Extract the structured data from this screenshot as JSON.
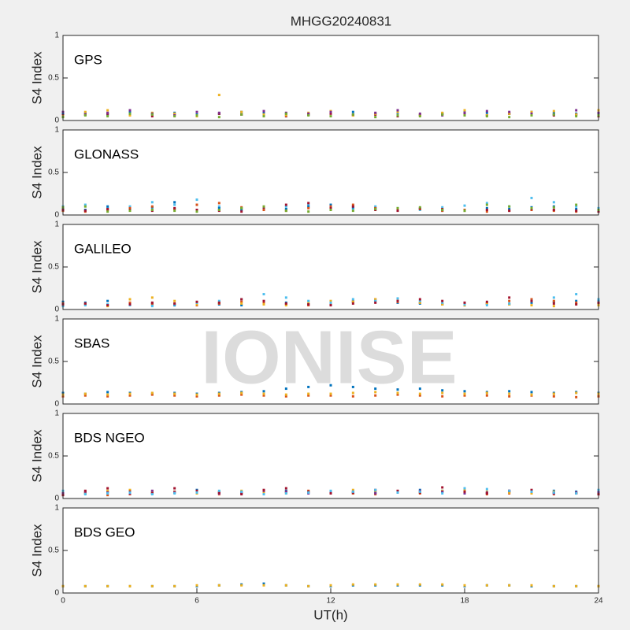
{
  "chart_data": [
    {
      "type": "scatter",
      "title": "MHGG20240831",
      "label": "GPS",
      "ylabel": "S4 Index",
      "xlim": [
        0,
        24
      ],
      "ylim": [
        0,
        1
      ],
      "yticks": [
        0,
        0.5,
        1
      ],
      "x": [
        0,
        1,
        2,
        3,
        4,
        5,
        6,
        7,
        8,
        9,
        10,
        11,
        12,
        13,
        14,
        15,
        16,
        17,
        18,
        19,
        20,
        21,
        22,
        23,
        24
      ],
      "series": [
        {
          "color": "#0072BD",
          "values": [
            0.08,
            0.09,
            0.07,
            0.1,
            0.08,
            0.09,
            0.07,
            0.08,
            0.1,
            0.09,
            0.08,
            0.07,
            0.09,
            0.1,
            0.08,
            0.09,
            0.07,
            0.08,
            0.1,
            0.09,
            0.08,
            0.1,
            0.09,
            0.08,
            0.07
          ]
        },
        {
          "color": "#A2142F",
          "values": [
            0.06,
            0.07,
            0.08,
            0.06,
            0.05,
            0.07,
            0.06,
            0.08,
            0.07,
            0.06,
            0.05,
            0.07,
            0.08,
            0.06,
            0.07,
            0.05,
            0.06,
            0.08,
            0.07,
            0.06,
            0.08,
            0.07,
            0.06,
            0.07,
            0.05
          ]
        },
        {
          "color": "#EDB120",
          "values": [
            0.05,
            0.1,
            0.12,
            0.06,
            0.09,
            0.08,
            0.05,
            0.3,
            0.1,
            0.07,
            0.06,
            0.09,
            0.11,
            0.06,
            0.08,
            0.1,
            0.07,
            0.09,
            0.12,
            0.06,
            0.08,
            0.1,
            0.11,
            0.07,
            0.12
          ]
        },
        {
          "color": "#7E2F8E",
          "values": [
            0.1,
            0.07,
            0.09,
            0.12,
            0.08,
            0.06,
            0.1,
            0.09,
            0.07,
            0.11,
            0.09,
            0.08,
            0.1,
            0.07,
            0.09,
            0.12,
            0.08,
            0.06,
            0.09,
            0.11,
            0.1,
            0.08,
            0.07,
            0.12,
            0.09
          ]
        },
        {
          "color": "#77AC30",
          "values": [
            0.04,
            0.06,
            0.05,
            0.08,
            0.07,
            0.05,
            0.06,
            0.04,
            0.07,
            0.05,
            0.08,
            0.06,
            0.05,
            0.07,
            0.04,
            0.06,
            0.05,
            0.07,
            0.06,
            0.05,
            0.04,
            0.06,
            0.07,
            0.05,
            0.06
          ]
        }
      ]
    },
    {
      "type": "scatter",
      "label": "GLONASS",
      "ylabel": "S4 Index",
      "xlim": [
        0,
        24
      ],
      "ylim": [
        0,
        1
      ],
      "yticks": [
        0,
        0.5,
        1
      ],
      "x": [
        0,
        1,
        2,
        3,
        4,
        5,
        6,
        7,
        8,
        9,
        10,
        11,
        12,
        13,
        14,
        15,
        16,
        17,
        18,
        19,
        20,
        21,
        22,
        23,
        24
      ],
      "series": [
        {
          "color": "#4DBEEE",
          "values": [
            0.1,
            0.12,
            0.08,
            0.1,
            0.15,
            0.12,
            0.18,
            0.1,
            0.08,
            0.06,
            0.1,
            0.12,
            0.09,
            0.07,
            0.1,
            0.08,
            0.06,
            0.09,
            0.11,
            0.14,
            0.1,
            0.2,
            0.15,
            0.1,
            0.08
          ]
        },
        {
          "color": "#0072BD",
          "values": [
            0.08,
            0.06,
            0.1,
            0.07,
            0.09,
            0.15,
            0.12,
            0.08,
            0.06,
            0.08,
            0.07,
            0.1,
            0.12,
            0.09,
            0.08,
            0.06,
            0.07,
            0.05,
            0.06,
            0.08,
            0.07,
            0.09,
            0.1,
            0.07,
            0.06
          ]
        },
        {
          "color": "#D95319",
          "values": [
            0.05,
            0.04,
            0.06,
            0.08,
            0.1,
            0.07,
            0.12,
            0.14,
            0.09,
            0.06,
            0.05,
            0.08,
            0.1,
            0.12,
            0.08,
            0.06,
            0.07,
            0.05,
            0.06,
            0.04,
            0.05,
            0.06,
            0.05,
            0.04,
            0.05
          ]
        },
        {
          "color": "#A2142F",
          "values": [
            0.06,
            0.05,
            0.07,
            0.06,
            0.05,
            0.08,
            0.06,
            0.05,
            0.04,
            0.09,
            0.12,
            0.14,
            0.08,
            0.1,
            0.06,
            0.05,
            0.08,
            0.07,
            0.05,
            0.06,
            0.05,
            0.07,
            0.06,
            0.05,
            0.04
          ]
        },
        {
          "color": "#77AC30",
          "values": [
            0.09,
            0.1,
            0.04,
            0.05,
            0.06,
            0.05,
            0.04,
            0.06,
            0.08,
            0.1,
            0.05,
            0.04,
            0.06,
            0.05,
            0.07,
            0.08,
            0.09,
            0.06,
            0.05,
            0.12,
            0.1,
            0.08,
            0.09,
            0.12,
            0.06
          ]
        }
      ]
    },
    {
      "type": "scatter",
      "label": "GALILEO",
      "ylabel": "S4 Index",
      "xlim": [
        0,
        24
      ],
      "ylim": [
        0,
        1
      ],
      "yticks": [
        0,
        0.5,
        1
      ],
      "x": [
        0,
        1,
        2,
        3,
        4,
        5,
        6,
        7,
        8,
        9,
        10,
        11,
        12,
        13,
        14,
        15,
        16,
        17,
        18,
        19,
        20,
        21,
        22,
        23,
        24
      ],
      "series": [
        {
          "color": "#0072BD",
          "values": [
            0.09,
            0.08,
            0.1,
            0.07,
            0.06,
            0.05,
            0.07,
            0.06,
            0.05,
            0.07,
            0.08,
            0.06,
            0.07,
            0.09,
            0.1,
            0.08,
            0.07,
            0.06,
            0.05,
            0.07,
            0.06,
            0.08,
            0.09,
            0.1,
            0.11
          ]
        },
        {
          "color": "#D95319",
          "values": [
            0.07,
            0.06,
            0.05,
            0.08,
            0.07,
            0.06,
            0.05,
            0.07,
            0.09,
            0.08,
            0.06,
            0.05,
            0.07,
            0.1,
            0.12,
            0.09,
            0.08,
            0.06,
            0.05,
            0.07,
            0.1,
            0.12,
            0.1,
            0.08,
            0.07
          ]
        },
        {
          "color": "#EDB120",
          "values": [
            0.05,
            0.06,
            0.04,
            0.12,
            0.14,
            0.1,
            0.06,
            0.08,
            0.07,
            0.06,
            0.05,
            0.08,
            0.1,
            0.09,
            0.12,
            0.1,
            0.08,
            0.06,
            0.05,
            0.07,
            0.06,
            0.05,
            0.04,
            0.06,
            0.05
          ]
        },
        {
          "color": "#4DBEEE",
          "values": [
            0.04,
            0.05,
            0.06,
            0.05,
            0.04,
            0.06,
            0.08,
            0.1,
            0.12,
            0.18,
            0.14,
            0.1,
            0.08,
            0.12,
            0.1,
            0.13,
            0.1,
            0.08,
            0.06,
            0.05,
            0.07,
            0.1,
            0.14,
            0.18,
            0.12
          ]
        },
        {
          "color": "#A2142F",
          "values": [
            0.06,
            0.07,
            0.05,
            0.06,
            0.08,
            0.07,
            0.09,
            0.08,
            0.12,
            0.1,
            0.07,
            0.06,
            0.05,
            0.07,
            0.08,
            0.1,
            0.12,
            0.1,
            0.08,
            0.09,
            0.14,
            0.1,
            0.07,
            0.06,
            0.08
          ]
        }
      ]
    },
    {
      "type": "scatter",
      "label": "SBAS",
      "watermark": "IONISE",
      "ylabel": "S4 Index",
      "xlim": [
        0,
        24
      ],
      "ylim": [
        0,
        1
      ],
      "yticks": [
        0,
        0.5,
        1
      ],
      "x": [
        0,
        1,
        2,
        3,
        4,
        5,
        6,
        7,
        8,
        9,
        10,
        11,
        12,
        13,
        14,
        15,
        16,
        17,
        18,
        19,
        20,
        21,
        22,
        23,
        24
      ],
      "series": [
        {
          "color": "#0072BD",
          "values": [
            0.13,
            0.12,
            0.14,
            0.13,
            0.12,
            0.13,
            0.12,
            0.13,
            0.14,
            0.15,
            0.18,
            0.2,
            0.22,
            0.2,
            0.18,
            0.17,
            0.18,
            0.16,
            0.15,
            0.14,
            0.15,
            0.14,
            0.13,
            0.14,
            0.13
          ]
        },
        {
          "color": "#D95319",
          "values": [
            0.09,
            0.1,
            0.09,
            0.1,
            0.11,
            0.1,
            0.09,
            0.1,
            0.11,
            0.1,
            0.09,
            0.1,
            0.1,
            0.09,
            0.1,
            0.11,
            0.1,
            0.09,
            0.1,
            0.1,
            0.09,
            0.1,
            0.09,
            0.08,
            0.09
          ]
        },
        {
          "color": "#EDB120",
          "values": [
            0.11,
            0.12,
            0.11,
            0.12,
            0.13,
            0.12,
            0.11,
            0.12,
            0.13,
            0.12,
            0.11,
            0.12,
            0.12,
            0.13,
            0.14,
            0.13,
            0.12,
            0.13,
            0.12,
            0.13,
            0.12,
            0.11,
            0.12,
            0.13,
            0.12
          ]
        }
      ]
    },
    {
      "type": "scatter",
      "label": "BDS NGEO",
      "ylabel": "S4 Index",
      "xlim": [
        0,
        24
      ],
      "ylim": [
        0,
        1
      ],
      "yticks": [
        0,
        0.5,
        1
      ],
      "x": [
        0,
        1,
        2,
        3,
        4,
        5,
        6,
        7,
        8,
        9,
        10,
        11,
        12,
        13,
        14,
        15,
        16,
        17,
        18,
        19,
        20,
        21,
        22,
        23,
        24
      ],
      "series": [
        {
          "color": "#0072BD",
          "values": [
            0.07,
            0.06,
            0.08,
            0.07,
            0.06,
            0.08,
            0.1,
            0.07,
            0.06,
            0.08,
            0.09,
            0.07,
            0.08,
            0.06,
            0.07,
            0.08,
            0.1,
            0.09,
            0.07,
            0.06,
            0.08,
            0.07,
            0.09,
            0.08,
            0.06
          ]
        },
        {
          "color": "#D95319",
          "values": [
            0.05,
            0.06,
            0.04,
            0.05,
            0.07,
            0.08,
            0.06,
            0.05,
            0.07,
            0.06,
            0.08,
            0.09,
            0.07,
            0.06,
            0.05,
            0.07,
            0.06,
            0.08,
            0.07,
            0.05,
            0.06,
            0.07,
            0.05,
            0.06,
            0.05
          ]
        },
        {
          "color": "#EDB120",
          "values": [
            0.08,
            0.07,
            0.09,
            0.1,
            0.08,
            0.07,
            0.06,
            0.08,
            0.09,
            0.07,
            0.06,
            0.08,
            0.07,
            0.1,
            0.09,
            0.08,
            0.07,
            0.09,
            0.1,
            0.08,
            0.07,
            0.06,
            0.08,
            0.07,
            0.09
          ]
        },
        {
          "color": "#7E2F8E",
          "values": [
            0.06,
            0.08,
            0.07,
            0.06,
            0.09,
            0.07,
            0.08,
            0.06,
            0.07,
            0.09,
            0.08,
            0.06,
            0.07,
            0.08,
            0.06,
            0.07,
            0.09,
            0.08,
            0.06,
            0.07,
            0.09,
            0.08,
            0.06,
            0.07,
            0.08
          ]
        },
        {
          "color": "#A2142F",
          "values": [
            0.04,
            0.09,
            0.12,
            0.08,
            0.06,
            0.12,
            0.09,
            0.07,
            0.05,
            0.1,
            0.12,
            0.08,
            0.06,
            0.07,
            0.1,
            0.09,
            0.07,
            0.13,
            0.08,
            0.06,
            0.09,
            0.1,
            0.07,
            0.06,
            0.05
          ]
        },
        {
          "color": "#4DBEEE",
          "values": [
            0.09,
            0.05,
            0.06,
            0.07,
            0.05,
            0.06,
            0.07,
            0.09,
            0.08,
            0.05,
            0.06,
            0.07,
            0.09,
            0.08,
            0.1,
            0.07,
            0.08,
            0.06,
            0.12,
            0.11,
            0.09,
            0.08,
            0.07,
            0.06,
            0.1
          ]
        }
      ]
    },
    {
      "type": "scatter",
      "label": "BDS GEO",
      "ylabel": "S4 Index",
      "xlabel": "UT(h)",
      "xlim": [
        0,
        24
      ],
      "ylim": [
        0,
        1
      ],
      "yticks": [
        0,
        0.5,
        1
      ],
      "xticks": [
        0,
        6,
        12,
        18,
        24
      ],
      "x": [
        0,
        1,
        2,
        3,
        4,
        5,
        6,
        7,
        8,
        9,
        10,
        11,
        12,
        13,
        14,
        15,
        16,
        17,
        18,
        19,
        20,
        21,
        22,
        23,
        24
      ],
      "series": [
        {
          "color": "#0072BD",
          "values": [
            0.08,
            0.08,
            0.08,
            0.08,
            0.08,
            0.08,
            0.08,
            0.09,
            0.1,
            0.11,
            0.09,
            0.08,
            0.08,
            0.09,
            0.09,
            0.09,
            0.09,
            0.09,
            0.08,
            0.09,
            0.09,
            0.08,
            0.08,
            0.08,
            0.08
          ]
        },
        {
          "color": "#EDB120",
          "values": [
            0.08,
            0.08,
            0.08,
            0.08,
            0.08,
            0.08,
            0.09,
            0.09,
            0.09,
            0.09,
            0.09,
            0.08,
            0.09,
            0.1,
            0.1,
            0.1,
            0.1,
            0.1,
            0.09,
            0.09,
            0.09,
            0.09,
            0.08,
            0.08,
            0.08
          ]
        }
      ]
    }
  ]
}
